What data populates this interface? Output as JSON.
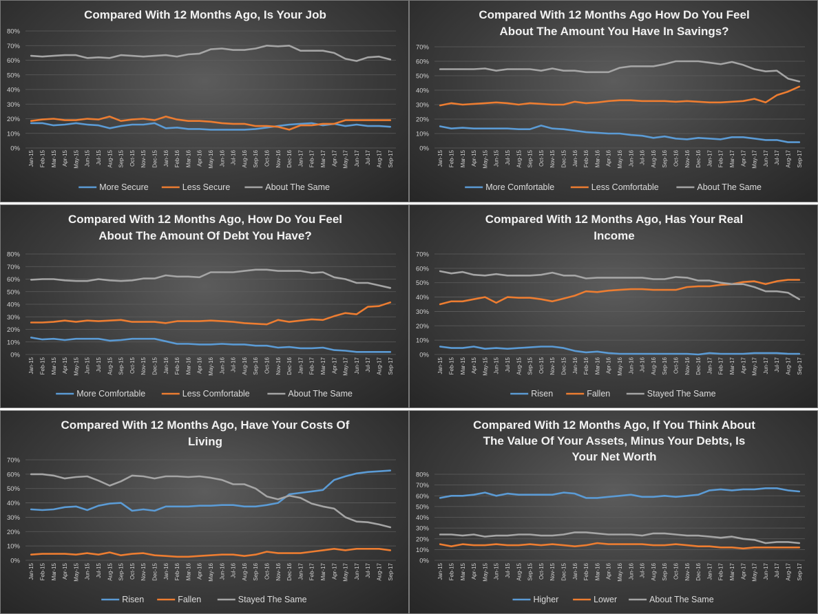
{
  "colors": {
    "blue": "#5b9bd5",
    "orange": "#ed7d31",
    "gray": "#a5a5a5"
  },
  "months": [
    "Jan-15",
    "Feb-15",
    "Mar-15",
    "Apr-15",
    "May-15",
    "Jun-15",
    "Jul-15",
    "Aug-15",
    "Sep-15",
    "Oct-15",
    "Nov-15",
    "Dec-15",
    "Jan-16",
    "Feb-16",
    "Mar-16",
    "Apr-16",
    "May-16",
    "Jun-16",
    "Jul-16",
    "Aug-16",
    "Sep-16",
    "Oct-16",
    "Nov-16",
    "Dec-16",
    "Jan-17",
    "Feb-17",
    "Mar-17",
    "Apr-17",
    "May-17",
    "Jun-17",
    "Jul-17",
    "Aug-17",
    "Sep-17"
  ],
  "chart_data": [
    {
      "type": "line",
      "title": [
        "Compared With 12 Months Ago, Is Your Job"
      ],
      "ylim": [
        0,
        80
      ],
      "yticks": [
        "0%",
        "10%",
        "20%",
        "30%",
        "40%",
        "50%",
        "60%",
        "70%",
        "80%"
      ],
      "legend_position": "bottom",
      "series": [
        {
          "name": "More Secure",
          "color": "blue",
          "values": [
            17,
            17,
            15.5,
            16,
            17,
            16,
            15.5,
            13.5,
            15,
            16,
            16,
            17,
            13.5,
            14,
            13,
            13,
            12.5,
            12.5,
            12.5,
            12.5,
            13,
            14,
            15,
            16,
            16.5,
            17,
            15.5,
            16.5,
            15,
            16,
            15,
            15,
            14.5
          ]
        },
        {
          "name": "Less Secure",
          "color": "orange",
          "values": [
            18.5,
            19.5,
            20,
            19,
            19,
            20,
            19.5,
            21.5,
            18.5,
            19.5,
            20,
            19,
            21.5,
            19.5,
            18.5,
            18.5,
            18,
            17,
            16.5,
            16.5,
            15,
            15,
            14.5,
            12.5,
            15.5,
            15.5,
            16.5,
            16.5,
            19,
            19,
            19,
            19,
            19
          ]
        },
        {
          "name": "About The Same",
          "color": "gray",
          "values": [
            63,
            62.5,
            63,
            63.5,
            63.5,
            61.5,
            62,
            61.5,
            63.5,
            63,
            62.5,
            63,
            63.5,
            62.5,
            64,
            64.5,
            67.5,
            68,
            67,
            67,
            68,
            70,
            69.5,
            70,
            66.5,
            66.5,
            66.5,
            65,
            61,
            59.5,
            62,
            62.5,
            60.5
          ]
        }
      ]
    },
    {
      "type": "line",
      "title": [
        "Compared With 12 Months Ago How Do You Feel",
        "About The Amount You Have In Savings?"
      ],
      "ylim": [
        0,
        70
      ],
      "yticks": [
        "0%",
        "10%",
        "20%",
        "30%",
        "40%",
        "50%",
        "60%",
        "70%"
      ],
      "legend_position": "bottom",
      "series": [
        {
          "name": "More Comfortable",
          "color": "blue",
          "values": [
            15,
            13.5,
            14,
            13.5,
            13.5,
            13.5,
            13.5,
            13,
            13,
            15.5,
            13.5,
            13,
            12,
            11,
            10.5,
            10,
            10,
            9,
            8.5,
            7,
            8,
            6.5,
            6,
            7,
            6.5,
            6,
            7.5,
            7.5,
            6.5,
            5.5,
            5.5,
            4,
            4
          ]
        },
        {
          "name": "Less Comfortable",
          "color": "orange",
          "values": [
            29.5,
            31,
            30,
            30.5,
            31,
            31.5,
            31,
            30,
            31,
            30.5,
            30,
            30,
            32,
            31,
            31.5,
            32.5,
            33,
            33,
            32.5,
            32.5,
            32.5,
            32,
            32.5,
            32,
            31.5,
            31.5,
            32,
            32.5,
            34,
            31.5,
            36.5,
            39,
            42.5
          ]
        },
        {
          "name": "About The Same",
          "color": "gray",
          "values": [
            54.5,
            54.5,
            54.5,
            54.5,
            55,
            53.5,
            54.5,
            54.5,
            54.5,
            53.5,
            55,
            53.5,
            53.5,
            52.5,
            52.5,
            52.5,
            55.5,
            56.5,
            56.5,
            56.5,
            58,
            60,
            60,
            60,
            59,
            58,
            59.5,
            57.5,
            54.5,
            53,
            53.5,
            48,
            46
          ]
        }
      ]
    },
    {
      "type": "line",
      "title": [
        "Compared With 12 Months Ago, How Do You Feel",
        "About The Amount Of Debt You Have?"
      ],
      "ylim": [
        0,
        80
      ],
      "yticks": [
        "0%",
        "10%",
        "20%",
        "30%",
        "40%",
        "50%",
        "60%",
        "70%",
        "80%"
      ],
      "legend_position": "bottom",
      "series": [
        {
          "name": "More Comfortable",
          "color": "blue",
          "values": [
            13.5,
            12,
            12.5,
            11.5,
            12.5,
            12.5,
            12.5,
            11,
            11.5,
            12.5,
            12.5,
            12.5,
            10.5,
            8.5,
            8.5,
            8,
            8,
            8.5,
            8,
            8,
            7,
            7,
            5.5,
            6,
            5,
            5,
            5.5,
            3.5,
            3,
            2,
            2,
            2,
            2
          ]
        },
        {
          "name": "Less Comfortable",
          "color": "orange",
          "values": [
            25.5,
            25.5,
            26,
            27,
            26,
            27,
            26.5,
            27,
            27.5,
            26,
            26,
            26,
            25,
            26.5,
            26.5,
            26.5,
            27,
            26.5,
            26,
            25,
            24.5,
            24,
            27.5,
            26,
            27,
            28,
            27.5,
            30.5,
            33,
            32,
            38,
            38.5,
            41.5
          ]
        },
        {
          "name": "About The Same",
          "color": "gray",
          "values": [
            59.5,
            60,
            60,
            59,
            58.5,
            58.5,
            60,
            59,
            58.5,
            59,
            60.5,
            60.5,
            63,
            62,
            62,
            61.5,
            65.5,
            65.5,
            65.5,
            66.5,
            67.5,
            67.5,
            66.5,
            66.5,
            66.5,
            65,
            65.5,
            61.5,
            60,
            57,
            57,
            55,
            53
          ]
        }
      ]
    },
    {
      "type": "line",
      "title": [
        "Compared With 12 Months Ago, Has Your Real",
        "Income"
      ],
      "ylim": [
        0,
        70
      ],
      "yticks": [
        "0%",
        "10%",
        "20%",
        "30%",
        "40%",
        "50%",
        "60%",
        "70%"
      ],
      "legend_position": "bottom",
      "series": [
        {
          "name": "Risen",
          "color": "blue",
          "values": [
            5.5,
            4.5,
            4.5,
            5.5,
            4,
            4.5,
            4,
            4.5,
            5,
            5.5,
            5.5,
            4.5,
            2.5,
            1.5,
            2,
            1,
            0.5,
            0.5,
            0.5,
            0.5,
            0.5,
            0.5,
            0.5,
            0,
            1,
            0.5,
            0.5,
            0.5,
            1,
            1,
            1,
            0.5,
            0.5
          ]
        },
        {
          "name": "Fallen",
          "color": "orange",
          "values": [
            35,
            37,
            37,
            38.5,
            40,
            36,
            40,
            39.5,
            39.5,
            38.5,
            37,
            39,
            41,
            44,
            43.5,
            44.5,
            45,
            45.5,
            45.5,
            45,
            45,
            45,
            47,
            47.5,
            47.5,
            48.5,
            49,
            50.5,
            51,
            49,
            51,
            52,
            52
          ]
        },
        {
          "name": "Stayed The Same",
          "color": "gray",
          "values": [
            58,
            56.5,
            57.5,
            55.5,
            55,
            56,
            55,
            55,
            55,
            55.5,
            57,
            55,
            55,
            53,
            53.5,
            53.5,
            53.5,
            53.5,
            53.5,
            52.5,
            52.5,
            54,
            53.5,
            51.5,
            51.5,
            50,
            49,
            49,
            47,
            44,
            44,
            43,
            38.5
          ]
        }
      ]
    },
    {
      "type": "line",
      "title": [
        "Compared With 12 Months Ago, Have Your Costs Of",
        "Living"
      ],
      "ylim": [
        0,
        70
      ],
      "yticks": [
        "0%",
        "10%",
        "20%",
        "30%",
        "40%",
        "50%",
        "60%",
        "70%"
      ],
      "legend_position": "bottom",
      "series": [
        {
          "name": "Risen",
          "color": "blue",
          "values": [
            35.5,
            35,
            35.5,
            37,
            37.5,
            35,
            38,
            39.5,
            40,
            34.5,
            35.5,
            34.5,
            37.5,
            37.5,
            37.5,
            38,
            38,
            38.5,
            38.5,
            37.5,
            37.5,
            38.5,
            40,
            46,
            47,
            48,
            49,
            56,
            58.5,
            60.5,
            61.5,
            62,
            62.5
          ]
        },
        {
          "name": "Fallen",
          "color": "orange",
          "values": [
            4,
            4.5,
            4.5,
            4.5,
            4,
            5,
            4,
            5.5,
            3.5,
            4.5,
            5,
            3.5,
            3,
            2.5,
            2.5,
            3,
            3.5,
            4,
            4,
            3,
            4,
            6,
            5,
            5,
            5,
            6,
            7,
            8,
            7,
            8,
            8,
            8,
            7
          ]
        },
        {
          "name": "Stayed The Same",
          "color": "gray",
          "values": [
            60,
            60,
            59,
            57,
            58,
            58.5,
            55.5,
            52,
            55,
            59,
            58.5,
            57,
            58.5,
            58.5,
            58,
            58.5,
            57.5,
            56,
            53,
            53,
            50,
            44.5,
            42.5,
            45,
            43.5,
            39.5,
            37.5,
            36,
            30,
            27,
            26.5,
            25,
            23
          ]
        }
      ]
    },
    {
      "type": "line",
      "title": [
        "Compared With 12 Months Ago, If You Think About",
        "The Value Of Your Assets, Minus Your Debts, Is",
        "Your Net Worth"
      ],
      "ylim": [
        0,
        80
      ],
      "yticks": [
        "0%",
        "10%",
        "20%",
        "30%",
        "40%",
        "50%",
        "60%",
        "70%",
        "80%"
      ],
      "legend_position": "bottom",
      "series": [
        {
          "name": "Higher",
          "color": "blue",
          "values": [
            58,
            60,
            60,
            61,
            63,
            60,
            62,
            61,
            61,
            61,
            61,
            63,
            62,
            58,
            58,
            59,
            60,
            61,
            59,
            59,
            60,
            59,
            60,
            61,
            65,
            66,
            65,
            66,
            66,
            67,
            67,
            65,
            64
          ]
        },
        {
          "name": "Lower",
          "color": "orange",
          "values": [
            15,
            13,
            15,
            14,
            14,
            15,
            14,
            14,
            15,
            14,
            15,
            14,
            13,
            14,
            16,
            15,
            15,
            15,
            15,
            14,
            14,
            15,
            14,
            13,
            13,
            12,
            12,
            11,
            12,
            12,
            12,
            12,
            12
          ]
        },
        {
          "name": "About The Same",
          "color": "gray",
          "values": [
            24,
            24,
            23,
            24,
            22,
            23,
            23,
            24,
            24,
            23,
            23,
            24,
            26,
            26,
            25,
            24,
            24,
            24,
            23,
            25,
            25,
            24,
            23,
            23,
            22,
            21,
            22,
            20,
            19,
            16,
            17,
            17,
            16
          ]
        }
      ]
    }
  ]
}
